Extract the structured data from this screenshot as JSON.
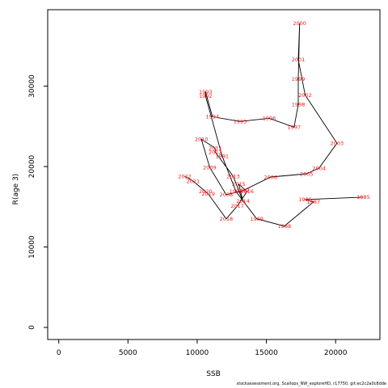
{
  "chart_data": {
    "type": "line",
    "title": "",
    "xlabel": "SSB",
    "ylabel": "R(age 3)",
    "xlim": [
      -800,
      23200
    ],
    "ylim": [
      -1500,
      39500
    ],
    "xticks": [
      "0",
      "5000",
      "10000",
      "15000",
      "20000"
    ],
    "xtick_values": [
      0,
      5000,
      10000,
      15000,
      20000
    ],
    "yticks": [
      "0",
      "10000",
      "20000",
      "30000"
    ],
    "ytick_values": [
      0,
      10000,
      20000,
      30000
    ],
    "grid": false,
    "series": [
      {
        "line_color": "#000000",
        "label_color": "#ee1c1c",
        "points": [
          {
            "label": "1985",
            "x": 22000,
            "y": 16200
          },
          {
            "label": "1986",
            "x": 17800,
            "y": 15900
          },
          {
            "label": "1987",
            "x": 18400,
            "y": 15600
          },
          {
            "label": "1988",
            "x": 16300,
            "y": 12600
          },
          {
            "label": "1989",
            "x": 14300,
            "y": 13500
          },
          {
            "label": "1990",
            "x": 12800,
            "y": 16900
          },
          {
            "label": "1991",
            "x": 11800,
            "y": 21300
          },
          {
            "label": "1992",
            "x": 10600,
            "y": 28800
          },
          {
            "label": "1993",
            "x": 10600,
            "y": 29300
          },
          {
            "label": "1994",
            "x": 11100,
            "y": 26200
          },
          {
            "label": "1995",
            "x": 13100,
            "y": 25600
          },
          {
            "label": "1996",
            "x": 15200,
            "y": 26000
          },
          {
            "label": "1997",
            "x": 17000,
            "y": 24900
          },
          {
            "label": "1998",
            "x": 17300,
            "y": 27700
          },
          {
            "label": "1999",
            "x": 17300,
            "y": 30900
          },
          {
            "label": "2000",
            "x": 17400,
            "y": 37800
          },
          {
            "label": "2001",
            "x": 17300,
            "y": 33300
          },
          {
            "label": "2002",
            "x": 17800,
            "y": 28900
          },
          {
            "label": "2003",
            "x": 20100,
            "y": 22900
          },
          {
            "label": "2004",
            "x": 18800,
            "y": 19800
          },
          {
            "label": "2005",
            "x": 17900,
            "y": 19100
          },
          {
            "label": "2006",
            "x": 15300,
            "y": 18700
          },
          {
            "label": "2007",
            "x": 13300,
            "y": 17000
          },
          {
            "label": "2008",
            "x": 12100,
            "y": 16500
          },
          {
            "label": "2009",
            "x": 10900,
            "y": 19900
          },
          {
            "label": "2010",
            "x": 10300,
            "y": 23400
          },
          {
            "label": "2011",
            "x": 11300,
            "y": 22300
          },
          {
            "label": "2012",
            "x": 11300,
            "y": 21800
          },
          {
            "label": "2013",
            "x": 12600,
            "y": 18800
          },
          {
            "label": "2014",
            "x": 13300,
            "y": 15700
          },
          {
            "label": "2015",
            "x": 13000,
            "y": 17800
          },
          {
            "label": "2016",
            "x": 13600,
            "y": 16900
          },
          {
            "label": "2017",
            "x": 12900,
            "y": 15100
          },
          {
            "label": "2018",
            "x": 12100,
            "y": 13500
          },
          {
            "label": "2019",
            "x": 10800,
            "y": 16600
          },
          {
            "label": "2020",
            "x": 10600,
            "y": 16900
          },
          {
            "label": "2021",
            "x": 9700,
            "y": 18200
          },
          {
            "label": "2022",
            "x": 9100,
            "y": 18800
          }
        ]
      }
    ]
  },
  "footer": "stockassessment.org, Scallops_NW_exploreHD, r17750, git:ec2c2a0c8dde"
}
